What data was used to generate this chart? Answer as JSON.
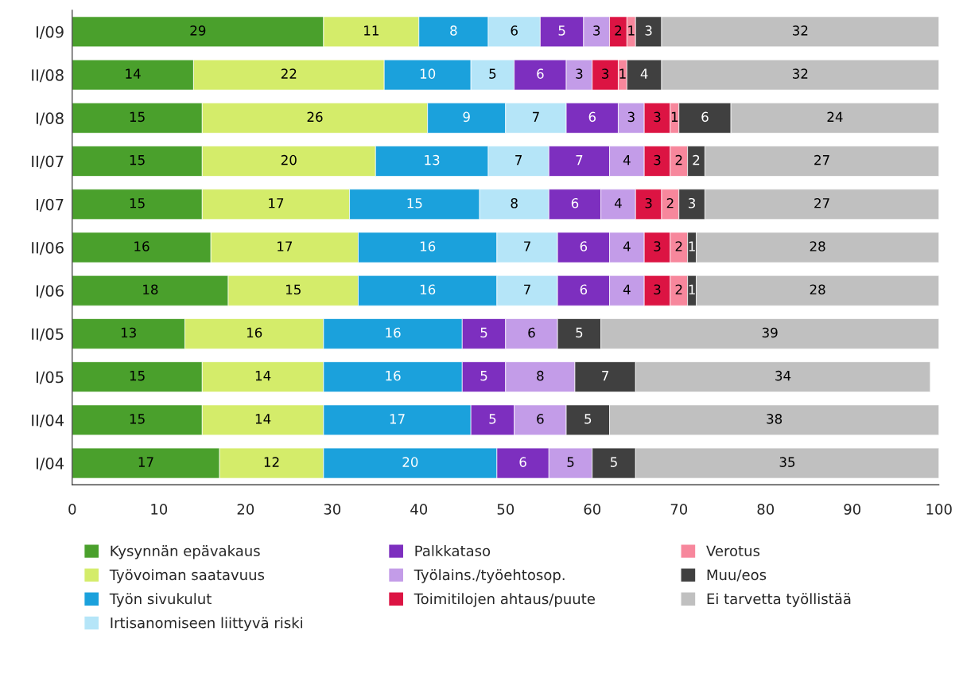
{
  "chart_data": {
    "type": "bar",
    "orientation": "horizontal",
    "stacked": true,
    "data_labels": true,
    "grid": false,
    "legend": "bottom",
    "categories": [
      "I/09",
      "II/08",
      "I/08",
      "II/07",
      "I/07",
      "II/06",
      "I/06",
      "II/05",
      "I/05",
      "II/04",
      "I/04"
    ],
    "xlim": [
      0,
      100
    ],
    "xticks": [
      0,
      10,
      20,
      30,
      40,
      50,
      60,
      70,
      80,
      90,
      100
    ],
    "series": [
      {
        "name": "Kysynnän epävakaus",
        "color": "#4aa02c",
        "values": [
          29,
          14,
          15,
          15,
          15,
          16,
          18,
          13,
          15,
          15,
          17
        ]
      },
      {
        "name": "Työvoiman saatavuus",
        "color": "#d4ec6a",
        "values": [
          11,
          22,
          26,
          20,
          17,
          17,
          15,
          16,
          14,
          14,
          12
        ]
      },
      {
        "name": "Työn sivukulut",
        "color": "#1ba1dc",
        "values": [
          8,
          10,
          9,
          13,
          15,
          16,
          16,
          16,
          16,
          17,
          20
        ]
      },
      {
        "name": "Irtisanomiseen liittyvä riski",
        "color": "#b5e5f8",
        "values": [
          6,
          5,
          7,
          7,
          8,
          7,
          7,
          null,
          null,
          null,
          null
        ]
      },
      {
        "name": "Palkkataso",
        "color": "#7d2fbf",
        "values": [
          5,
          6,
          6,
          7,
          6,
          6,
          6,
          5,
          5,
          5,
          6
        ]
      },
      {
        "name": "Työlains./työehtosop.",
        "color": "#c39ce8",
        "values": [
          3,
          3,
          3,
          4,
          4,
          4,
          4,
          6,
          8,
          6,
          5
        ]
      },
      {
        "name": "Toimitilojen ahtaus/puute",
        "color": "#dc1443",
        "values": [
          2,
          3,
          3,
          3,
          3,
          3,
          3,
          null,
          null,
          null,
          null
        ]
      },
      {
        "name": "Verotus",
        "color": "#f7879c",
        "values": [
          1,
          1,
          1,
          2,
          2,
          2,
          2,
          null,
          null,
          null,
          null
        ]
      },
      {
        "name": "Muu/eos",
        "color": "#404040",
        "values": [
          3,
          4,
          6,
          2,
          3,
          1,
          1,
          5,
          7,
          5,
          5
        ]
      },
      {
        "name": "Ei tarvetta työllistää",
        "color": "#c0c0c0",
        "values": [
          32,
          32,
          24,
          27,
          27,
          28,
          28,
          39,
          34,
          38,
          35
        ]
      }
    ]
  }
}
